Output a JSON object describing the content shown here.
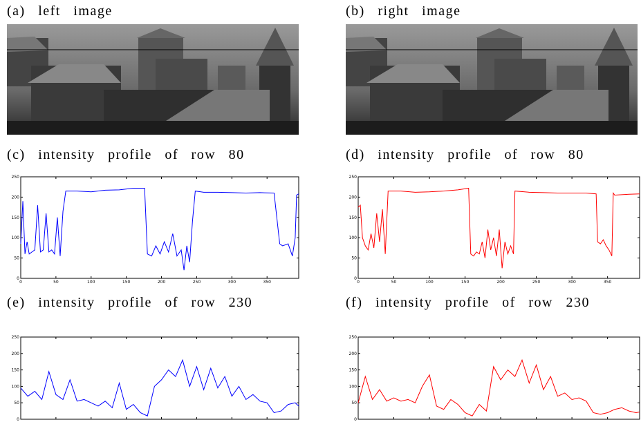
{
  "images": [
    {
      "title": "(a) left image"
    },
    {
      "title": "(b) right image"
    }
  ],
  "chart_data": [
    {
      "type": "line",
      "title": "(c) intensity profile of row 80",
      "x": [
        0,
        3,
        6,
        9,
        12,
        16,
        20,
        24,
        28,
        32,
        36,
        40,
        44,
        48,
        52,
        56,
        60,
        64,
        80,
        100,
        120,
        140,
        160,
        176,
        180,
        186,
        192,
        198,
        204,
        210,
        216,
        222,
        228,
        232,
        236,
        240,
        244,
        248,
        260,
        280,
        300,
        320,
        340,
        360,
        368,
        372,
        380,
        386,
        390,
        392,
        395
      ],
      "series": [
        {
          "color": "#0000ff",
          "values": [
            85,
            190,
            60,
            90,
            60,
            65,
            70,
            180,
            65,
            70,
            160,
            65,
            70,
            60,
            150,
            55,
            165,
            215,
            215,
            213,
            217,
            218,
            222,
            222,
            60,
            55,
            80,
            60,
            90,
            65,
            110,
            55,
            70,
            20,
            80,
            40,
            140,
            215,
            212,
            212,
            211,
            210,
            211,
            210,
            85,
            80,
            85,
            55,
            100,
            205,
            208
          ]
        }
      ],
      "xlim": [
        0,
        395
      ],
      "ylim": [
        0,
        250
      ],
      "xticks": [
        0,
        50,
        100,
        150,
        200,
        250,
        300,
        350
      ],
      "yticks": [
        0,
        50,
        100,
        150,
        200,
        250
      ]
    },
    {
      "type": "line",
      "title": "(d) intensity profile of row 80",
      "x": [
        0,
        3,
        6,
        10,
        14,
        18,
        22,
        26,
        30,
        34,
        38,
        42,
        60,
        80,
        100,
        120,
        140,
        155,
        158,
        162,
        166,
        170,
        174,
        178,
        182,
        186,
        190,
        194,
        198,
        202,
        206,
        210,
        214,
        218,
        220,
        240,
        260,
        280,
        300,
        320,
        334,
        336,
        340,
        344,
        348,
        352,
        356,
        358,
        360,
        380,
        395
      ],
      "series": [
        {
          "color": "#ff0000",
          "values": [
            175,
            180,
            100,
            80,
            70,
            110,
            75,
            160,
            90,
            170,
            60,
            215,
            215,
            212,
            213,
            215,
            218,
            222,
            60,
            55,
            65,
            60,
            90,
            50,
            120,
            70,
            100,
            55,
            120,
            25,
            90,
            60,
            80,
            60,
            215,
            212,
            211,
            210,
            210,
            210,
            208,
            90,
            85,
            95,
            80,
            70,
            55,
            210,
            205,
            207,
            208
          ]
        }
      ],
      "xlim": [
        0,
        395
      ],
      "ylim": [
        0,
        250
      ],
      "xticks": [
        0,
        50,
        100,
        150,
        200,
        250,
        300,
        350
      ],
      "yticks": [
        0,
        50,
        100,
        150,
        200,
        250
      ]
    },
    {
      "type": "line",
      "title": "(e) intensity profile of row 230",
      "x": [
        0,
        10,
        20,
        30,
        40,
        50,
        60,
        70,
        80,
        90,
        100,
        110,
        120,
        130,
        140,
        150,
        160,
        170,
        180,
        190,
        200,
        210,
        220,
        230,
        240,
        250,
        260,
        270,
        280,
        290,
        300,
        310,
        320,
        330,
        340,
        350,
        360,
        370,
        380,
        390,
        395
      ],
      "series": [
        {
          "color": "#0000ff",
          "values": [
            95,
            70,
            85,
            60,
            145,
            75,
            60,
            120,
            55,
            60,
            50,
            40,
            55,
            35,
            110,
            30,
            45,
            20,
            10,
            100,
            120,
            150,
            130,
            180,
            100,
            160,
            90,
            155,
            95,
            130,
            70,
            100,
            60,
            75,
            55,
            50,
            20,
            25,
            45,
            50,
            40
          ]
        }
      ],
      "xlim": [
        0,
        395
      ],
      "ylim": [
        0,
        250
      ],
      "xticks": [
        0,
        50,
        100,
        150,
        200,
        250,
        300,
        350
      ],
      "yticks": [
        0,
        50,
        100,
        150,
        200,
        250
      ]
    },
    {
      "type": "line",
      "title": "(f) intensity profile of row 230",
      "x": [
        0,
        10,
        20,
        30,
        40,
        50,
        60,
        70,
        80,
        90,
        100,
        110,
        120,
        130,
        140,
        150,
        160,
        170,
        180,
        190,
        200,
        210,
        220,
        230,
        240,
        250,
        260,
        270,
        280,
        290,
        300,
        310,
        320,
        330,
        340,
        350,
        360,
        370,
        380,
        390,
        395
      ],
      "series": [
        {
          "color": "#ff0000",
          "values": [
            50,
            130,
            60,
            90,
            55,
            65,
            55,
            60,
            50,
            100,
            135,
            40,
            30,
            60,
            45,
            20,
            10,
            45,
            25,
            160,
            120,
            150,
            130,
            180,
            110,
            165,
            90,
            130,
            70,
            80,
            60,
            65,
            55,
            20,
            15,
            20,
            30,
            35,
            25,
            20,
            22
          ]
        }
      ],
      "xlim": [
        0,
        395
      ],
      "ylim": [
        0,
        250
      ],
      "xticks": [
        0,
        50,
        100,
        150,
        200,
        250,
        300,
        350
      ],
      "yticks": [
        0,
        50,
        100,
        150,
        200,
        250
      ]
    }
  ]
}
